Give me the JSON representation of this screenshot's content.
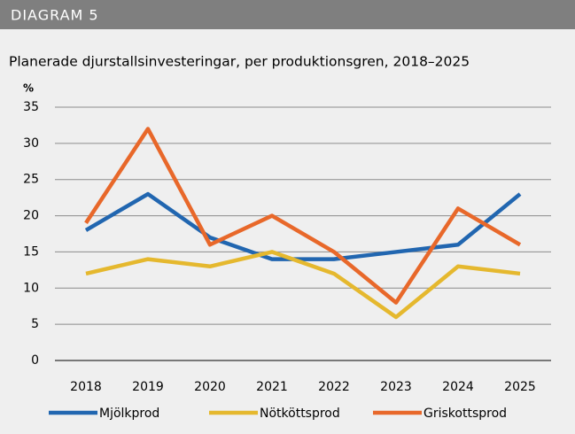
{
  "header": "DIAGRAM 5",
  "chart_data": {
    "type": "line",
    "title": "Planerade djurstallsinvesteringar, per produktionsgren, 2018–2025",
    "y_label": "%",
    "categories": [
      "2018",
      "2019",
      "2020",
      "2021",
      "2022",
      "2023",
      "2024",
      "2025"
    ],
    "series": [
      {
        "name": "Mjölkprod",
        "color": "#2166b0",
        "values": [
          18,
          23,
          17,
          14,
          14,
          15,
          16,
          23
        ]
      },
      {
        "name": "Nötköttsprod",
        "color": "#e5b82e",
        "values": [
          12,
          14,
          13,
          15,
          12,
          6,
          13,
          12
        ]
      },
      {
        "name": "Griskottsprod",
        "color": "#e8682a",
        "values": [
          19,
          32,
          16,
          20,
          15,
          8,
          21,
          16
        ]
      }
    ],
    "ylim": [
      0,
      35
    ],
    "yticks": [
      0,
      5,
      10,
      15,
      20,
      25,
      30,
      35
    ],
    "grid": true
  }
}
